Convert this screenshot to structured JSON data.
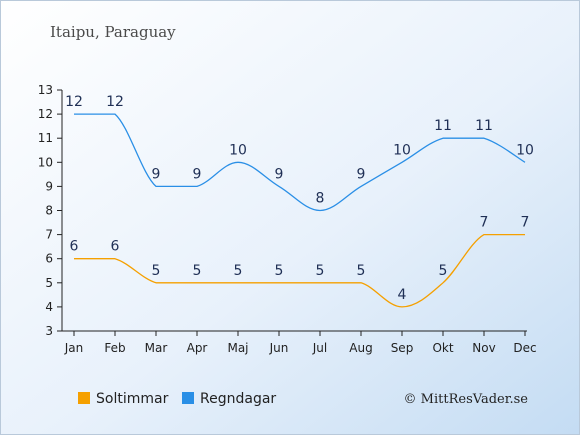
{
  "header": {
    "title": "Itaipu, Paraguay"
  },
  "legend": {
    "sun_label": "Soltimmar",
    "rain_label": "Regndagar"
  },
  "footer": {
    "credit": "© MittResVader.se"
  },
  "chart_data": {
    "type": "line",
    "title": "Itaipu, Paraguay",
    "categories": [
      "Jan",
      "Feb",
      "Mar",
      "Apr",
      "Maj",
      "Jun",
      "Jul",
      "Aug",
      "Sep",
      "Okt",
      "Nov",
      "Dec"
    ],
    "ylim": [
      3,
      13
    ],
    "yticks": [
      3,
      4,
      5,
      6,
      7,
      8,
      9,
      10,
      11,
      12,
      13
    ],
    "grid": false,
    "legend_position": "bottom",
    "series": [
      {
        "name": "Soltimmar",
        "color": "#f5a000",
        "values": [
          6,
          6,
          5,
          5,
          5,
          5,
          5,
          5,
          4,
          5,
          7,
          7
        ]
      },
      {
        "name": "Regndagar",
        "color": "#2a8fe6",
        "values": [
          12,
          12,
          9,
          9,
          10,
          9,
          8,
          9,
          10,
          11,
          11,
          10
        ]
      }
    ]
  }
}
